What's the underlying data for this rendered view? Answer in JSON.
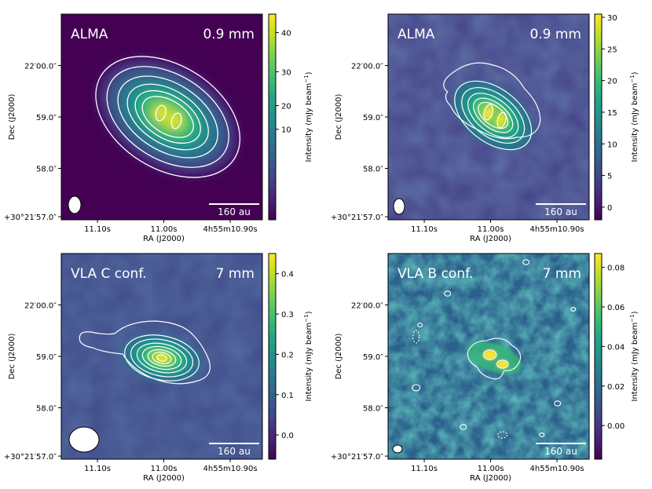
{
  "chart_data": [
    {
      "type": "heatmap",
      "instrument": "ALMA",
      "wavelength": "0.9 mm",
      "colorbar": {
        "label": "Intensity (mJy beam$^{-1}$)",
        "label_text": "Intensity (mJy beam",
        "label_sup": "−1",
        "label_close": ")",
        "ticks": [
          "10",
          "20",
          "30",
          "40"
        ],
        "tick_values": [
          10,
          20,
          30,
          40
        ],
        "range": [
          0,
          44
        ],
        "tick_scale": "nonlinear"
      },
      "xlabel": "RA (J2000)",
      "ylabel": "Dec (J2000)",
      "xticks": [
        "11.10s",
        "11.00s",
        "4h55m10.90s"
      ],
      "yticks": [
        "+30°21′57.0″",
        "58.0″",
        "59.0″",
        "22′00.0″"
      ],
      "scalebar": "160 au",
      "source": {
        "peak_mJy": 44,
        "double_peak": true
      }
    },
    {
      "type": "heatmap",
      "instrument": "ALMA",
      "wavelength": "0.9 mm",
      "colorbar": {
        "label": "Intensity (mJy beam$^{-1}$)",
        "label_text": "Intensity (mJy beam",
        "label_sup": "−1",
        "label_close": ")",
        "ticks": [
          "0",
          "5",
          "10",
          "15",
          "20",
          "25",
          "30"
        ],
        "tick_values": [
          0,
          5,
          10,
          15,
          20,
          25,
          30
        ],
        "range": [
          -2,
          30.5
        ]
      },
      "xlabel": "RA (J2000)",
      "ylabel": "Dec (J2000)",
      "xticks": [
        "11.10s",
        "11.00s",
        "4h55m10.90s"
      ],
      "yticks": [
        "+30°21′57.0″",
        "58.0″",
        "59.0″",
        "22′00.0″"
      ],
      "scalebar": "160 au",
      "source": {
        "peak_mJy": 30,
        "double_peak": true
      }
    },
    {
      "type": "heatmap",
      "instrument": "VLA C conf.",
      "wavelength": "7 mm",
      "colorbar": {
        "label": "Intensity (mJy beam$^{-1}$)",
        "label_text": "Intensity (mJy beam",
        "label_sup": "−1",
        "label_close": ")",
        "ticks": [
          "0.0",
          "0.1",
          "0.2",
          "0.3",
          "0.4"
        ],
        "tick_values": [
          0.0,
          0.1,
          0.2,
          0.3,
          0.4
        ],
        "range": [
          -0.06,
          0.45
        ]
      },
      "xlabel": "RA (J2000)",
      "ylabel": "Dec (J2000)",
      "xticks": [
        "11.10s",
        "11.00s",
        "4h55m10.90s"
      ],
      "yticks": [
        "+30°21′57.0″",
        "58.0″",
        "59.0″",
        "22′00.0″"
      ],
      "scalebar": "160 au",
      "source": {
        "peak_mJy": 0.44,
        "double_peak": false
      }
    },
    {
      "type": "heatmap",
      "instrument": "VLA B conf.",
      "wavelength": "7 mm",
      "colorbar": {
        "label": "Intensity (mJy beam$^{-1}$)",
        "label_text": "Intensity (mJy beam",
        "label_sup": "−1",
        "label_close": ")",
        "ticks": [
          "0.00",
          "0.02",
          "0.04",
          "0.06",
          "0.08"
        ],
        "tick_values": [
          0.0,
          0.02,
          0.04,
          0.06,
          0.08
        ],
        "range": [
          -0.017,
          0.087
        ]
      },
      "xlabel": "RA (J2000)",
      "ylabel": "Dec (J2000)",
      "xticks": [
        "11.10s",
        "11.00s",
        "4h55m10.90s"
      ],
      "yticks": [
        "+30°21′57.0″",
        "58.0″",
        "59.0″",
        "22′00.0″"
      ],
      "scalebar": "160 au",
      "source": {
        "peak_mJy": 0.086,
        "double_peak": true
      }
    }
  ]
}
